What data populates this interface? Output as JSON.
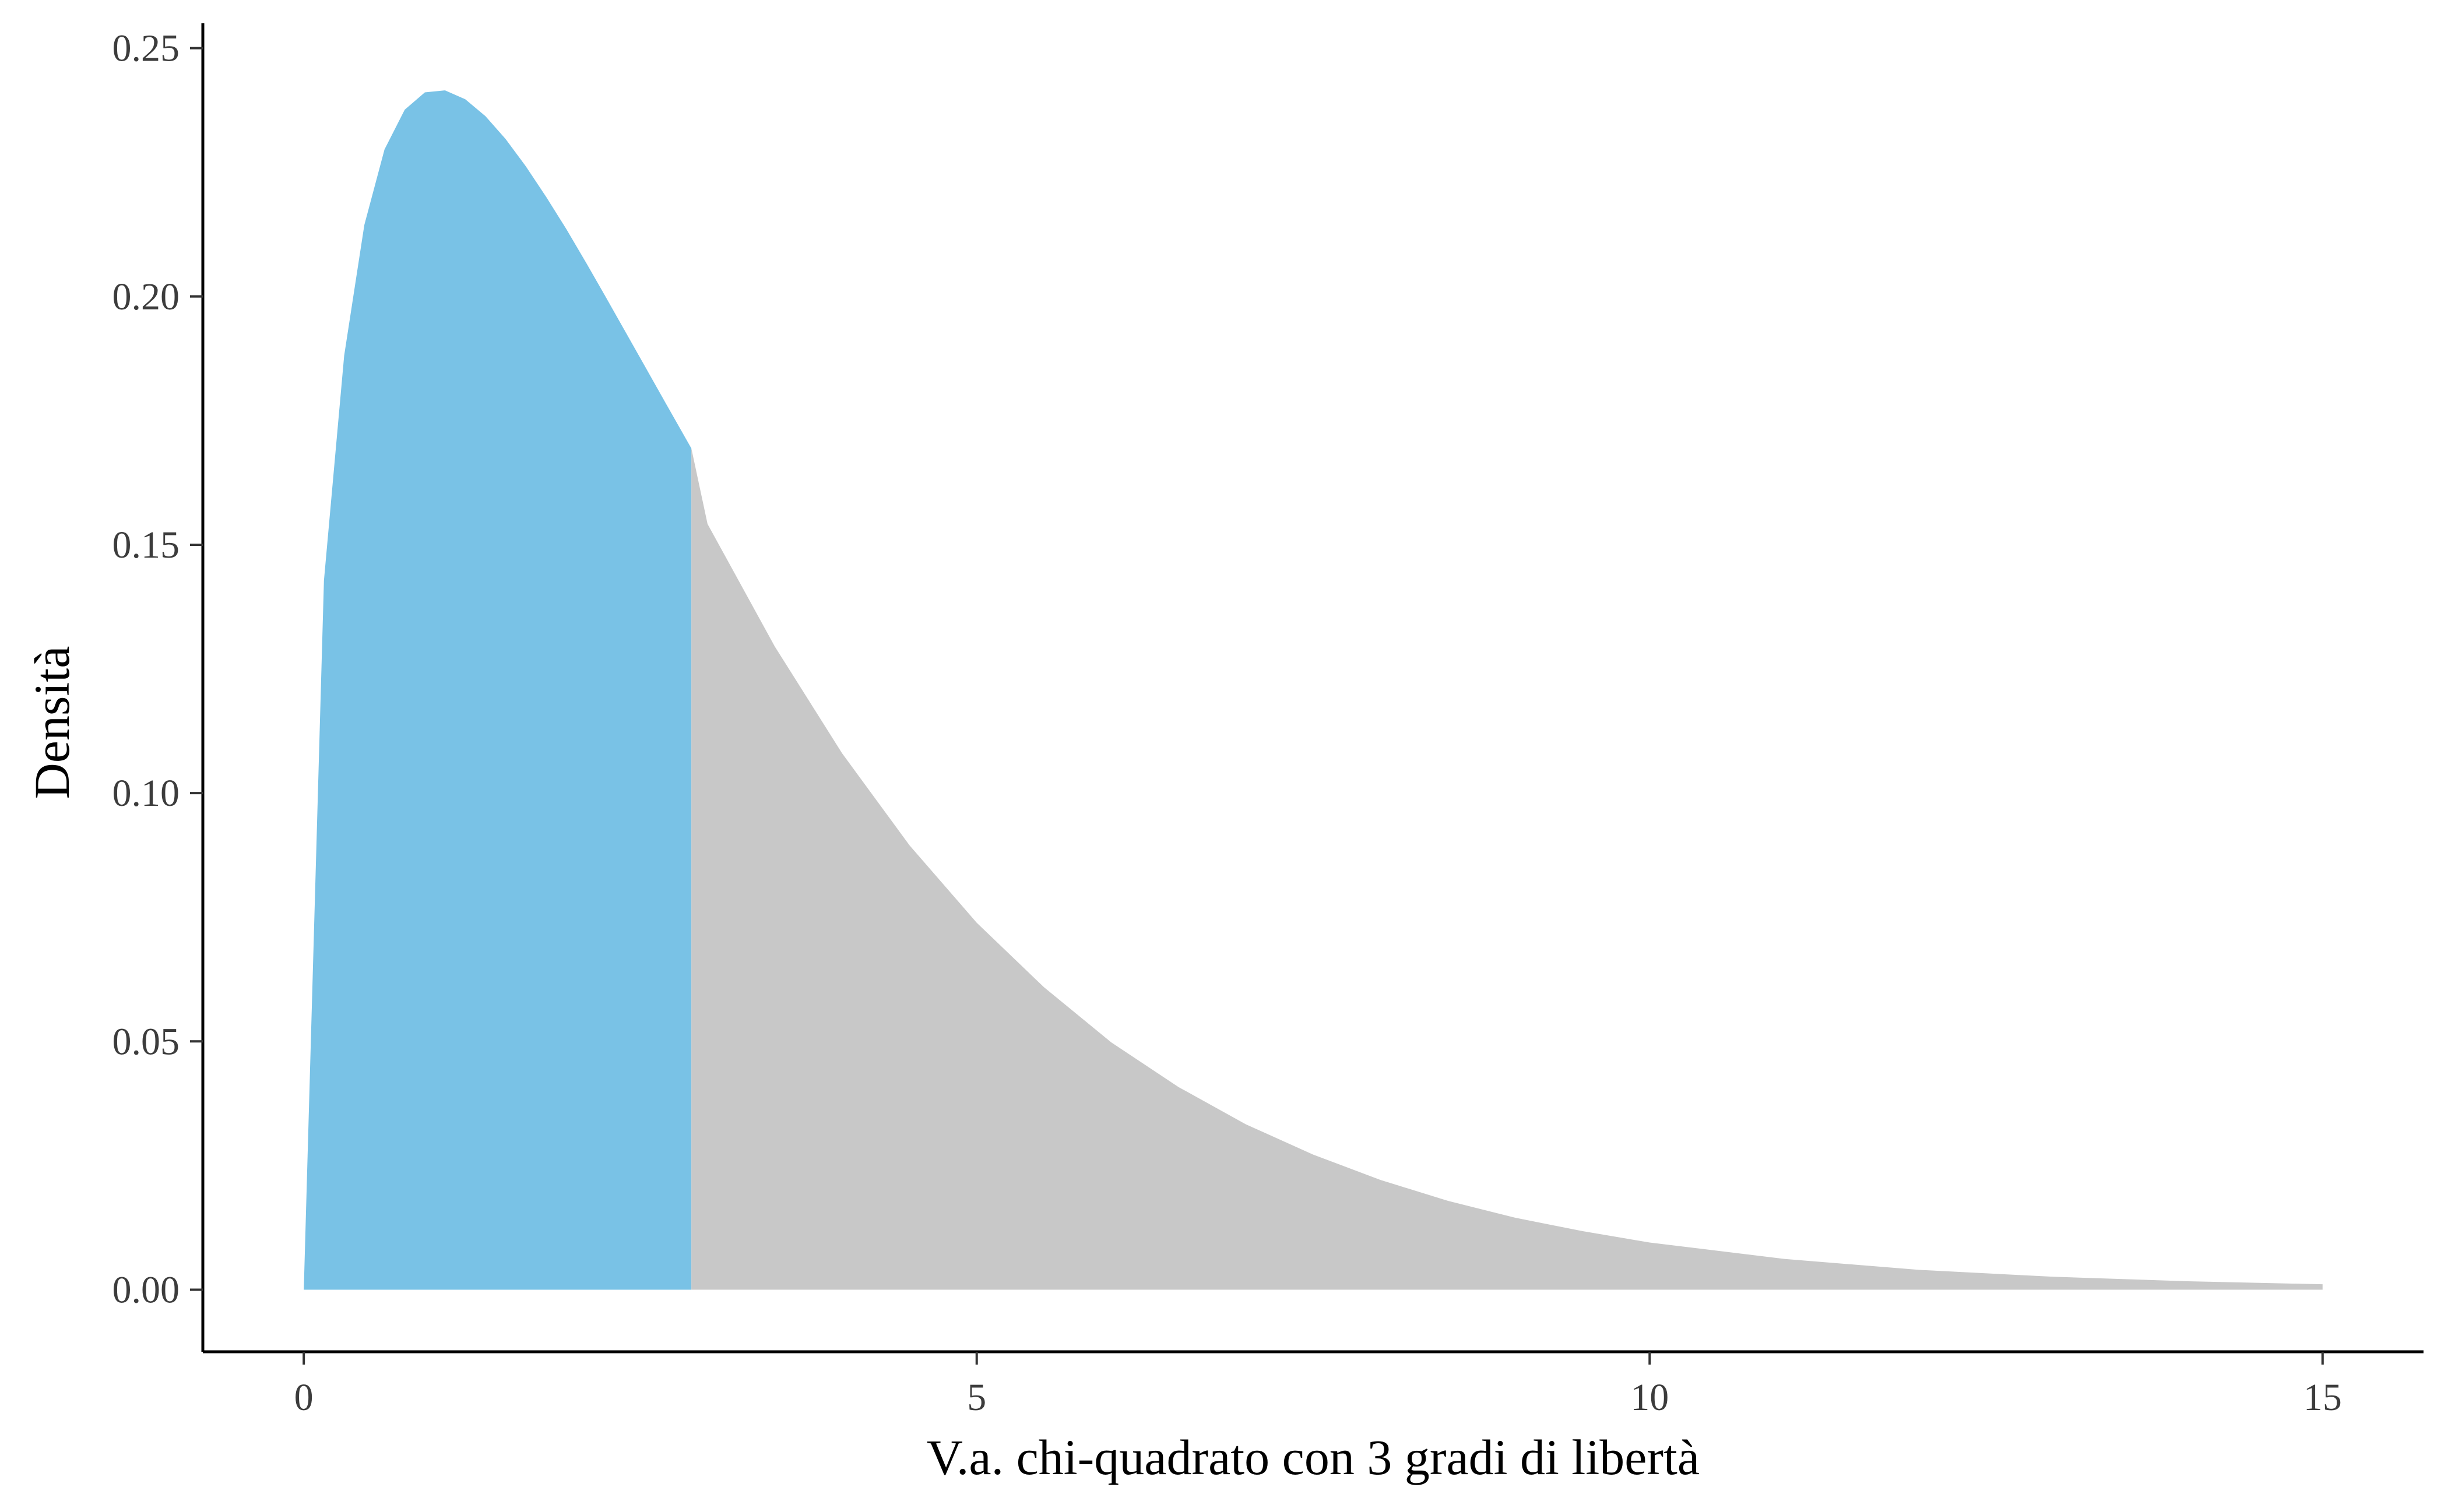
{
  "chart_data": {
    "type": "area",
    "distribution": "chi-square",
    "degrees_of_freedom": 3,
    "xlabel": "V.a. chi-quadrato con 3 gradi di libertà",
    "ylabel": "Densità",
    "xlim": [
      -0.75,
      15.75
    ],
    "ylim": [
      -0.0125,
      0.255
    ],
    "x_ticks": [
      0,
      5,
      10,
      15
    ],
    "x_tick_labels": [
      "0",
      "5",
      "10",
      "15"
    ],
    "y_ticks": [
      0.0,
      0.05,
      0.1,
      0.15,
      0.2,
      0.25
    ],
    "y_tick_labels": [
      "0.00",
      "0.05",
      "0.10",
      "0.15",
      "0.20",
      "0.25"
    ],
    "grid": false,
    "legend": "none",
    "series": [
      {
        "x_range": [
          0,
          2.88
        ],
        "color": "#79c2e6",
        "x": [
          0.0,
          0.15,
          0.3,
          0.45,
          0.6,
          0.75,
          0.9,
          1.05,
          1.2,
          1.35,
          1.5,
          1.65,
          1.8,
          1.95,
          2.1,
          2.25,
          2.4,
          2.55,
          2.7,
          2.88
        ],
        "values": [
          0.0,
          0.1428,
          0.1881,
          0.2144,
          0.2296,
          0.2376,
          0.2411,
          0.2415,
          0.2397,
          0.2363,
          0.2317,
          0.2262,
          0.2201,
          0.2136,
          0.2067,
          0.1996,
          0.1924,
          0.1852,
          0.178,
          0.1694
        ]
      },
      {
        "x_range": [
          2.88,
          15
        ],
        "color": "#c8c8c8",
        "x": [
          2.88,
          3.0,
          3.5,
          4.0,
          4.5,
          5.0,
          5.5,
          6.0,
          6.5,
          7.0,
          7.5,
          8.0,
          8.5,
          9.0,
          9.5,
          10.0,
          11.0,
          12.0,
          13.0,
          14.0,
          15.0
        ],
        "values": [
          0.1694,
          0.1542,
          0.1295,
          0.108,
          0.0895,
          0.0739,
          0.0609,
          0.0498,
          0.0408,
          0.0333,
          0.0272,
          0.0221,
          0.0179,
          0.0145,
          0.0118,
          0.0095,
          0.0062,
          0.004,
          0.0026,
          0.0017,
          0.0011
        ]
      }
    ]
  }
}
